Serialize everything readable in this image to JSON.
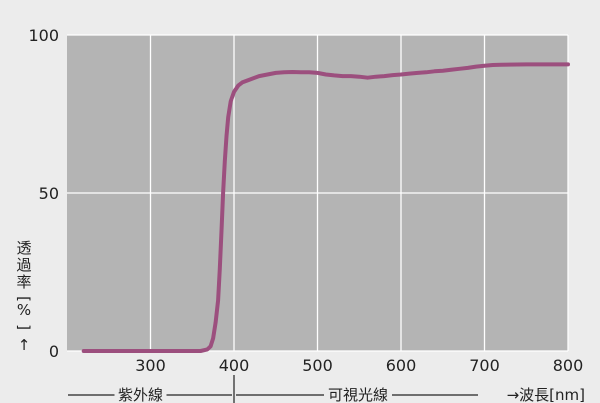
{
  "chart_data": {
    "type": "line",
    "title": "",
    "xlabel": "→波長[nm]",
    "ylabel": "透過率[%]",
    "ylabel_arrow": "↑",
    "xlim": [
      200,
      800
    ],
    "ylim": [
      0,
      100
    ],
    "x_ticks": [
      300,
      400,
      500,
      600,
      700,
      800
    ],
    "y_ticks": [
      0,
      50,
      100
    ],
    "grid": true,
    "regions": [
      {
        "label": "紫外線",
        "from": 200,
        "to": 400
      },
      {
        "label": "可視光線",
        "from": 400,
        "to": 700
      }
    ],
    "colors": {
      "plot_background": "#b4b4b4",
      "page_background": "#ececec",
      "grid": "#ffffff",
      "series": "#9c4f7e"
    },
    "series": [
      {
        "name": "",
        "points": [
          [
            220,
            0
          ],
          [
            300,
            0
          ],
          [
            360,
            0
          ],
          [
            368,
            0.5
          ],
          [
            372,
            1.5
          ],
          [
            375,
            4
          ],
          [
            378,
            9
          ],
          [
            381,
            16
          ],
          [
            383,
            26
          ],
          [
            385,
            38
          ],
          [
            387,
            50
          ],
          [
            389,
            60
          ],
          [
            391,
            68
          ],
          [
            393,
            74
          ],
          [
            396,
            79
          ],
          [
            400,
            82
          ],
          [
            405,
            84
          ],
          [
            410,
            85
          ],
          [
            420,
            86
          ],
          [
            430,
            87
          ],
          [
            440,
            87.5
          ],
          [
            450,
            88
          ],
          [
            460,
            88.2
          ],
          [
            470,
            88.3
          ],
          [
            480,
            88.2
          ],
          [
            490,
            88.2
          ],
          [
            500,
            88
          ],
          [
            510,
            87.5
          ],
          [
            520,
            87.2
          ],
          [
            530,
            87
          ],
          [
            540,
            87
          ],
          [
            550,
            86.8
          ],
          [
            560,
            86.5
          ],
          [
            570,
            86.8
          ],
          [
            580,
            87
          ],
          [
            590,
            87.3
          ],
          [
            600,
            87.5
          ],
          [
            610,
            87.8
          ],
          [
            620,
            88
          ],
          [
            630,
            88.2
          ],
          [
            640,
            88.5
          ],
          [
            650,
            88.7
          ],
          [
            660,
            89
          ],
          [
            670,
            89.3
          ],
          [
            680,
            89.6
          ],
          [
            690,
            90
          ],
          [
            700,
            90.3
          ],
          [
            710,
            90.5
          ],
          [
            720,
            90.6
          ],
          [
            750,
            90.7
          ],
          [
            800,
            90.7
          ]
        ]
      }
    ]
  }
}
